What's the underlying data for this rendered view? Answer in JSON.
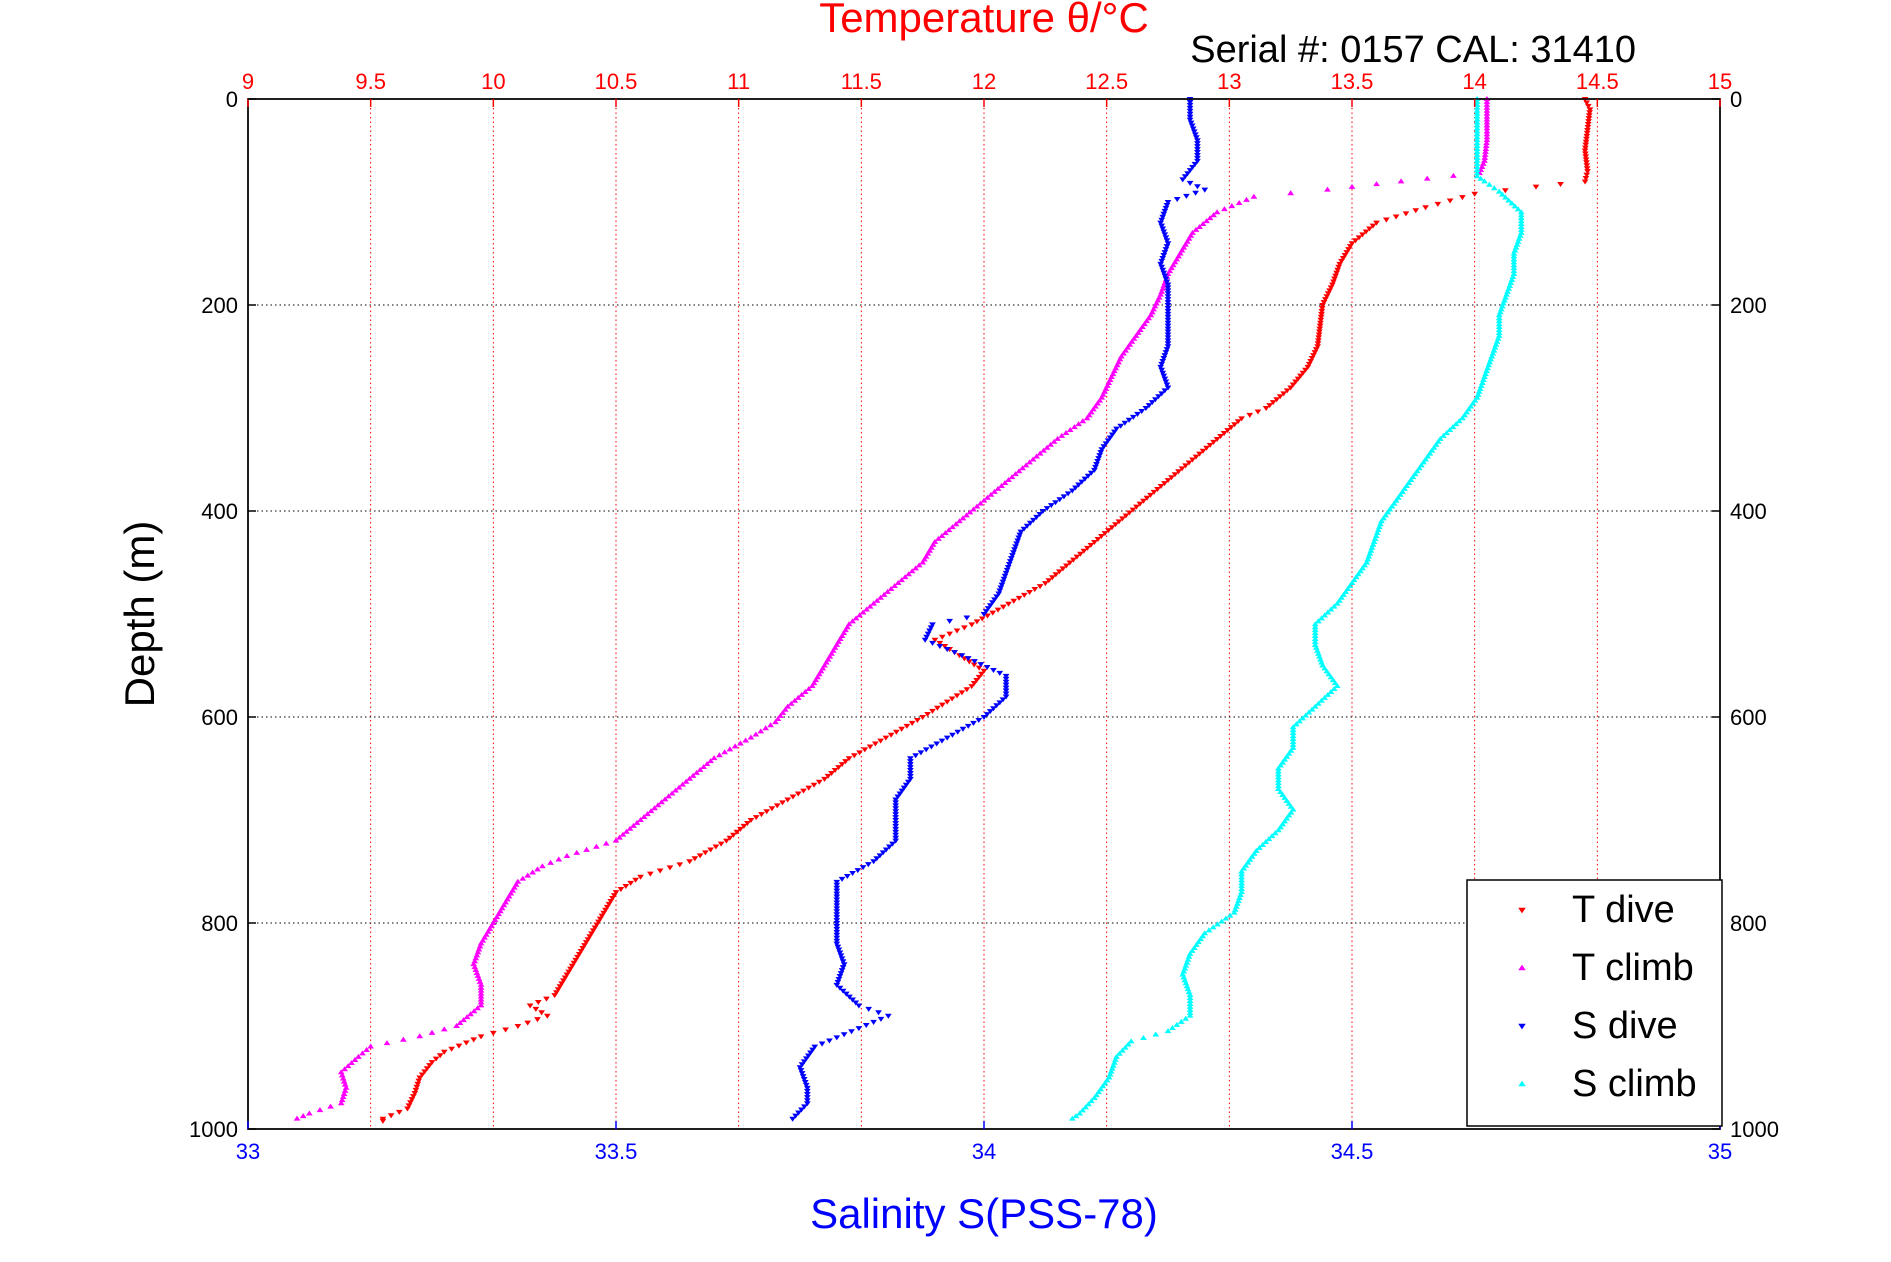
{
  "chart_data": {
    "type": "scatter",
    "title": "Serial #: 0157  CAL: 31410",
    "top_axis": {
      "label": "Temperature θ/°C",
      "range": [
        9,
        15
      ],
      "ticks": [
        "9",
        "9.5",
        "10",
        "10.5",
        "11",
        "11.5",
        "12",
        "12.5",
        "13",
        "13.5",
        "14",
        "14.5",
        "15"
      ],
      "tick_values": [
        9,
        9.5,
        10,
        10.5,
        11,
        11.5,
        12,
        12.5,
        13,
        13.5,
        14,
        14.5,
        15
      ],
      "color": "#ff0000"
    },
    "bottom_axis": {
      "label": "Salinity S(PSS-78)",
      "range": [
        33,
        35
      ],
      "ticks": [
        "33",
        "33.5",
        "34",
        "34.5",
        "35"
      ],
      "tick_values": [
        33,
        33.5,
        34,
        34.5,
        35
      ],
      "color": "#0000ff"
    },
    "left_axis": {
      "label": "Depth (m)",
      "range": [
        0,
        1000
      ],
      "reversed": true,
      "ticks": [
        "0",
        "200",
        "400",
        "600",
        "800",
        "1000"
      ],
      "tick_values": [
        0,
        200,
        400,
        600,
        800,
        1000
      ]
    },
    "right_axis": {
      "ticks": [
        "0",
        "200",
        "400",
        "600",
        "800",
        "1000"
      ],
      "tick_values": [
        0,
        200,
        400,
        600,
        800,
        1000
      ]
    },
    "grid": true,
    "legend": {
      "placement": "bottom-right"
    },
    "series": [
      {
        "name": "T dive",
        "axis": "temperature",
        "color": "#ff0000",
        "marker": "triangle-down",
        "points": [
          [
            14.45,
            0
          ],
          [
            14.47,
            10
          ],
          [
            14.46,
            30
          ],
          [
            14.45,
            50
          ],
          [
            14.46,
            70
          ],
          [
            14.45,
            80
          ],
          [
            14.25,
            85
          ],
          [
            14.0,
            92
          ],
          [
            13.8,
            105
          ],
          [
            13.6,
            120
          ],
          [
            13.5,
            140
          ],
          [
            13.45,
            160
          ],
          [
            13.42,
            180
          ],
          [
            13.38,
            200
          ],
          [
            13.37,
            220
          ],
          [
            13.36,
            240
          ],
          [
            13.32,
            260
          ],
          [
            13.25,
            280
          ],
          [
            13.15,
            300
          ],
          [
            13.05,
            310
          ],
          [
            12.95,
            330
          ],
          [
            12.85,
            350
          ],
          [
            12.75,
            370
          ],
          [
            12.65,
            390
          ],
          [
            12.55,
            410
          ],
          [
            12.45,
            430
          ],
          [
            12.35,
            450
          ],
          [
            12.25,
            470
          ],
          [
            12.1,
            490
          ],
          [
            11.95,
            510
          ],
          [
            11.8,
            525
          ],
          [
            11.9,
            540
          ],
          [
            12.0,
            555
          ],
          [
            11.95,
            570
          ],
          [
            11.85,
            585
          ],
          [
            11.75,
            600
          ],
          [
            11.6,
            620
          ],
          [
            11.45,
            640
          ],
          [
            11.35,
            660
          ],
          [
            11.2,
            680
          ],
          [
            11.05,
            700
          ],
          [
            10.95,
            720
          ],
          [
            10.8,
            740
          ],
          [
            10.6,
            755
          ],
          [
            10.5,
            770
          ],
          [
            10.45,
            790
          ],
          [
            10.4,
            810
          ],
          [
            10.35,
            830
          ],
          [
            10.3,
            850
          ],
          [
            10.25,
            870
          ],
          [
            10.15,
            880
          ],
          [
            10.22,
            890
          ],
          [
            10.1,
            900
          ],
          [
            9.95,
            910
          ],
          [
            9.8,
            925
          ],
          [
            9.75,
            935
          ],
          [
            9.7,
            950
          ],
          [
            9.68,
            965
          ],
          [
            9.65,
            980
          ],
          [
            9.55,
            990
          ],
          [
            9.55,
            992
          ]
        ]
      },
      {
        "name": "T climb",
        "axis": "temperature",
        "color": "#ff00ff",
        "marker": "triangle-up",
        "points": [
          [
            14.05,
            0
          ],
          [
            14.05,
            20
          ],
          [
            14.05,
            40
          ],
          [
            14.04,
            60
          ],
          [
            14.02,
            72
          ],
          [
            13.7,
            80
          ],
          [
            13.4,
            88
          ],
          [
            13.1,
            95
          ],
          [
            12.95,
            110
          ],
          [
            12.85,
            130
          ],
          [
            12.8,
            150
          ],
          [
            12.75,
            170
          ],
          [
            12.72,
            190
          ],
          [
            12.68,
            210
          ],
          [
            12.62,
            230
          ],
          [
            12.56,
            250
          ],
          [
            12.52,
            270
          ],
          [
            12.48,
            290
          ],
          [
            12.42,
            310
          ],
          [
            12.3,
            330
          ],
          [
            12.2,
            350
          ],
          [
            12.1,
            370
          ],
          [
            12.0,
            390
          ],
          [
            11.9,
            410
          ],
          [
            11.8,
            430
          ],
          [
            11.75,
            450
          ],
          [
            11.65,
            470
          ],
          [
            11.55,
            490
          ],
          [
            11.45,
            510
          ],
          [
            11.4,
            530
          ],
          [
            11.35,
            550
          ],
          [
            11.3,
            570
          ],
          [
            11.2,
            590
          ],
          [
            11.15,
            605
          ],
          [
            11.05,
            620
          ],
          [
            10.9,
            640
          ],
          [
            10.8,
            660
          ],
          [
            10.7,
            680
          ],
          [
            10.6,
            700
          ],
          [
            10.5,
            720
          ],
          [
            10.3,
            735
          ],
          [
            10.2,
            745
          ],
          [
            10.1,
            760
          ],
          [
            10.05,
            780
          ],
          [
            10.0,
            800
          ],
          [
            9.95,
            820
          ],
          [
            9.92,
            840
          ],
          [
            9.95,
            860
          ],
          [
            9.95,
            880
          ],
          [
            9.85,
            900
          ],
          [
            9.7,
            910
          ],
          [
            9.5,
            920
          ],
          [
            9.45,
            930
          ],
          [
            9.38,
            945
          ],
          [
            9.4,
            960
          ],
          [
            9.38,
            975
          ],
          [
            9.25,
            985
          ],
          [
            9.2,
            990
          ]
        ]
      },
      {
        "name": "S dive",
        "axis": "salinity",
        "color": "#0000ff",
        "marker": "triangle-down",
        "points": [
          [
            34.28,
            0
          ],
          [
            34.28,
            20
          ],
          [
            34.29,
            40
          ],
          [
            34.29,
            60
          ],
          [
            34.27,
            78
          ],
          [
            34.3,
            88
          ],
          [
            34.25,
            100
          ],
          [
            34.24,
            120
          ],
          [
            34.25,
            140
          ],
          [
            34.24,
            160
          ],
          [
            34.25,
            180
          ],
          [
            34.25,
            200
          ],
          [
            34.25,
            220
          ],
          [
            34.25,
            240
          ],
          [
            34.24,
            260
          ],
          [
            34.25,
            280
          ],
          [
            34.22,
            300
          ],
          [
            34.18,
            320
          ],
          [
            34.16,
            340
          ],
          [
            34.15,
            360
          ],
          [
            34.12,
            380
          ],
          [
            34.08,
            400
          ],
          [
            34.05,
            420
          ],
          [
            34.04,
            440
          ],
          [
            34.03,
            460
          ],
          [
            34.02,
            480
          ],
          [
            34.0,
            500
          ],
          [
            33.93,
            510
          ],
          [
            33.92,
            525
          ],
          [
            33.97,
            540
          ],
          [
            34.03,
            560
          ],
          [
            34.03,
            580
          ],
          [
            34.0,
            600
          ],
          [
            33.95,
            620
          ],
          [
            33.9,
            640
          ],
          [
            33.9,
            660
          ],
          [
            33.88,
            680
          ],
          [
            33.88,
            700
          ],
          [
            33.88,
            720
          ],
          [
            33.85,
            740
          ],
          [
            33.8,
            760
          ],
          [
            33.8,
            780
          ],
          [
            33.8,
            800
          ],
          [
            33.8,
            820
          ],
          [
            33.81,
            840
          ],
          [
            33.8,
            860
          ],
          [
            33.83,
            880
          ],
          [
            33.87,
            890
          ],
          [
            33.82,
            905
          ],
          [
            33.77,
            920
          ],
          [
            33.75,
            940
          ],
          [
            33.76,
            960
          ],
          [
            33.76,
            975
          ],
          [
            33.74,
            990
          ]
        ]
      },
      {
        "name": "S climb",
        "axis": "salinity",
        "color": "#00ffff",
        "marker": "triangle-up",
        "points": [
          [
            34.67,
            0
          ],
          [
            34.67,
            20
          ],
          [
            34.67,
            40
          ],
          [
            34.67,
            60
          ],
          [
            34.67,
            75
          ],
          [
            34.68,
            80
          ],
          [
            34.7,
            90
          ],
          [
            34.73,
            110
          ],
          [
            34.73,
            130
          ],
          [
            34.72,
            150
          ],
          [
            34.72,
            170
          ],
          [
            34.71,
            190
          ],
          [
            34.7,
            210
          ],
          [
            34.7,
            230
          ],
          [
            34.69,
            250
          ],
          [
            34.68,
            270
          ],
          [
            34.67,
            290
          ],
          [
            34.65,
            310
          ],
          [
            34.62,
            330
          ],
          [
            34.6,
            350
          ],
          [
            34.58,
            370
          ],
          [
            34.56,
            390
          ],
          [
            34.54,
            410
          ],
          [
            34.53,
            430
          ],
          [
            34.52,
            450
          ],
          [
            34.5,
            470
          ],
          [
            34.48,
            490
          ],
          [
            34.45,
            510
          ],
          [
            34.45,
            530
          ],
          [
            34.46,
            550
          ],
          [
            34.48,
            570
          ],
          [
            34.45,
            590
          ],
          [
            34.42,
            610
          ],
          [
            34.42,
            630
          ],
          [
            34.4,
            650
          ],
          [
            34.4,
            670
          ],
          [
            34.42,
            690
          ],
          [
            34.4,
            710
          ],
          [
            34.37,
            730
          ],
          [
            34.35,
            750
          ],
          [
            34.35,
            770
          ],
          [
            34.34,
            790
          ],
          [
            34.3,
            810
          ],
          [
            34.28,
            830
          ],
          [
            34.27,
            850
          ],
          [
            34.28,
            870
          ],
          [
            34.28,
            890
          ],
          [
            34.25,
            905
          ],
          [
            34.2,
            915
          ],
          [
            34.18,
            930
          ],
          [
            34.17,
            950
          ],
          [
            34.15,
            970
          ],
          [
            34.13,
            985
          ],
          [
            34.12,
            990
          ]
        ]
      }
    ]
  }
}
